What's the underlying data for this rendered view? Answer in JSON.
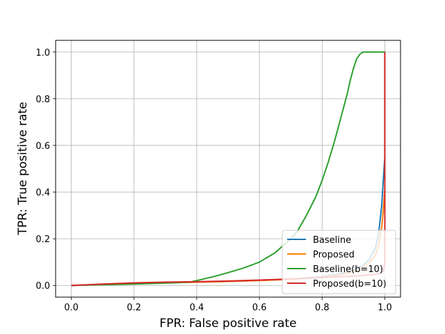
{
  "chart_data": {
    "type": "line",
    "title": "",
    "xlabel": "FPR: False positive rate",
    "ylabel": "TPR: True positive rate",
    "xlim": [
      -0.05,
      1.05
    ],
    "ylim": [
      -0.05,
      1.05
    ],
    "xticks": [
      "0.0",
      "0.2",
      "0.4",
      "0.6",
      "0.8",
      "1.0"
    ],
    "yticks": [
      "0.0",
      "0.2",
      "0.4",
      "0.6",
      "0.8",
      "1.0"
    ],
    "grid": true,
    "legend_position": "lower-right",
    "series": [
      {
        "name": "Baseline",
        "color": "#1f77b4",
        "x": [
          0.0,
          0.1,
          0.2,
          0.3,
          0.4,
          0.5,
          0.6,
          0.7,
          0.8,
          0.85,
          0.9,
          0.93,
          0.95,
          0.97,
          0.98,
          0.99,
          0.995,
          1.0,
          1.0
        ],
        "y": [
          0.0,
          0.004,
          0.008,
          0.011,
          0.014,
          0.017,
          0.021,
          0.027,
          0.038,
          0.048,
          0.065,
          0.085,
          0.11,
          0.16,
          0.22,
          0.34,
          0.45,
          0.55,
          1.0
        ]
      },
      {
        "name": "Proposed",
        "color": "#ff7f0e",
        "x": [
          0.0,
          0.1,
          0.2,
          0.3,
          0.4,
          0.5,
          0.6,
          0.7,
          0.8,
          0.85,
          0.9,
          0.93,
          0.95,
          0.97,
          0.98,
          0.99,
          0.995,
          1.0,
          1.0
        ],
        "y": [
          0.0,
          0.004,
          0.008,
          0.011,
          0.014,
          0.017,
          0.021,
          0.026,
          0.035,
          0.044,
          0.058,
          0.075,
          0.095,
          0.13,
          0.17,
          0.25,
          0.32,
          0.42,
          1.0
        ]
      },
      {
        "name": "Baseline(b=10)",
        "color": "#2ca02c",
        "x": [
          0.0,
          0.1,
          0.2,
          0.3,
          0.38,
          0.42,
          0.46,
          0.5,
          0.55,
          0.6,
          0.65,
          0.7,
          0.72,
          0.75,
          0.78,
          0.8,
          0.82,
          0.84,
          0.86,
          0.88,
          0.89,
          0.9,
          0.91,
          0.92,
          0.93,
          0.94,
          0.96,
          0.98,
          1.0,
          1.0
        ],
        "y": [
          0.0,
          0.003,
          0.006,
          0.01,
          0.015,
          0.027,
          0.04,
          0.055,
          0.075,
          0.1,
          0.14,
          0.2,
          0.23,
          0.3,
          0.38,
          0.45,
          0.53,
          0.62,
          0.72,
          0.82,
          0.88,
          0.93,
          0.97,
          0.99,
          1.0,
          1.0,
          1.0,
          1.0,
          1.0,
          0.98
        ]
      },
      {
        "name": "Proposed(b=10)",
        "color": "#d62728",
        "x": [
          0.0,
          0.1,
          0.2,
          0.3,
          0.4,
          0.5,
          0.6,
          0.7,
          0.8,
          0.9,
          0.95,
          0.98,
          0.995,
          1.0,
          1.0
        ],
        "y": [
          0.0,
          0.006,
          0.011,
          0.014,
          0.016,
          0.019,
          0.023,
          0.028,
          0.034,
          0.04,
          0.045,
          0.05,
          0.06,
          0.1,
          1.0
        ]
      }
    ]
  }
}
